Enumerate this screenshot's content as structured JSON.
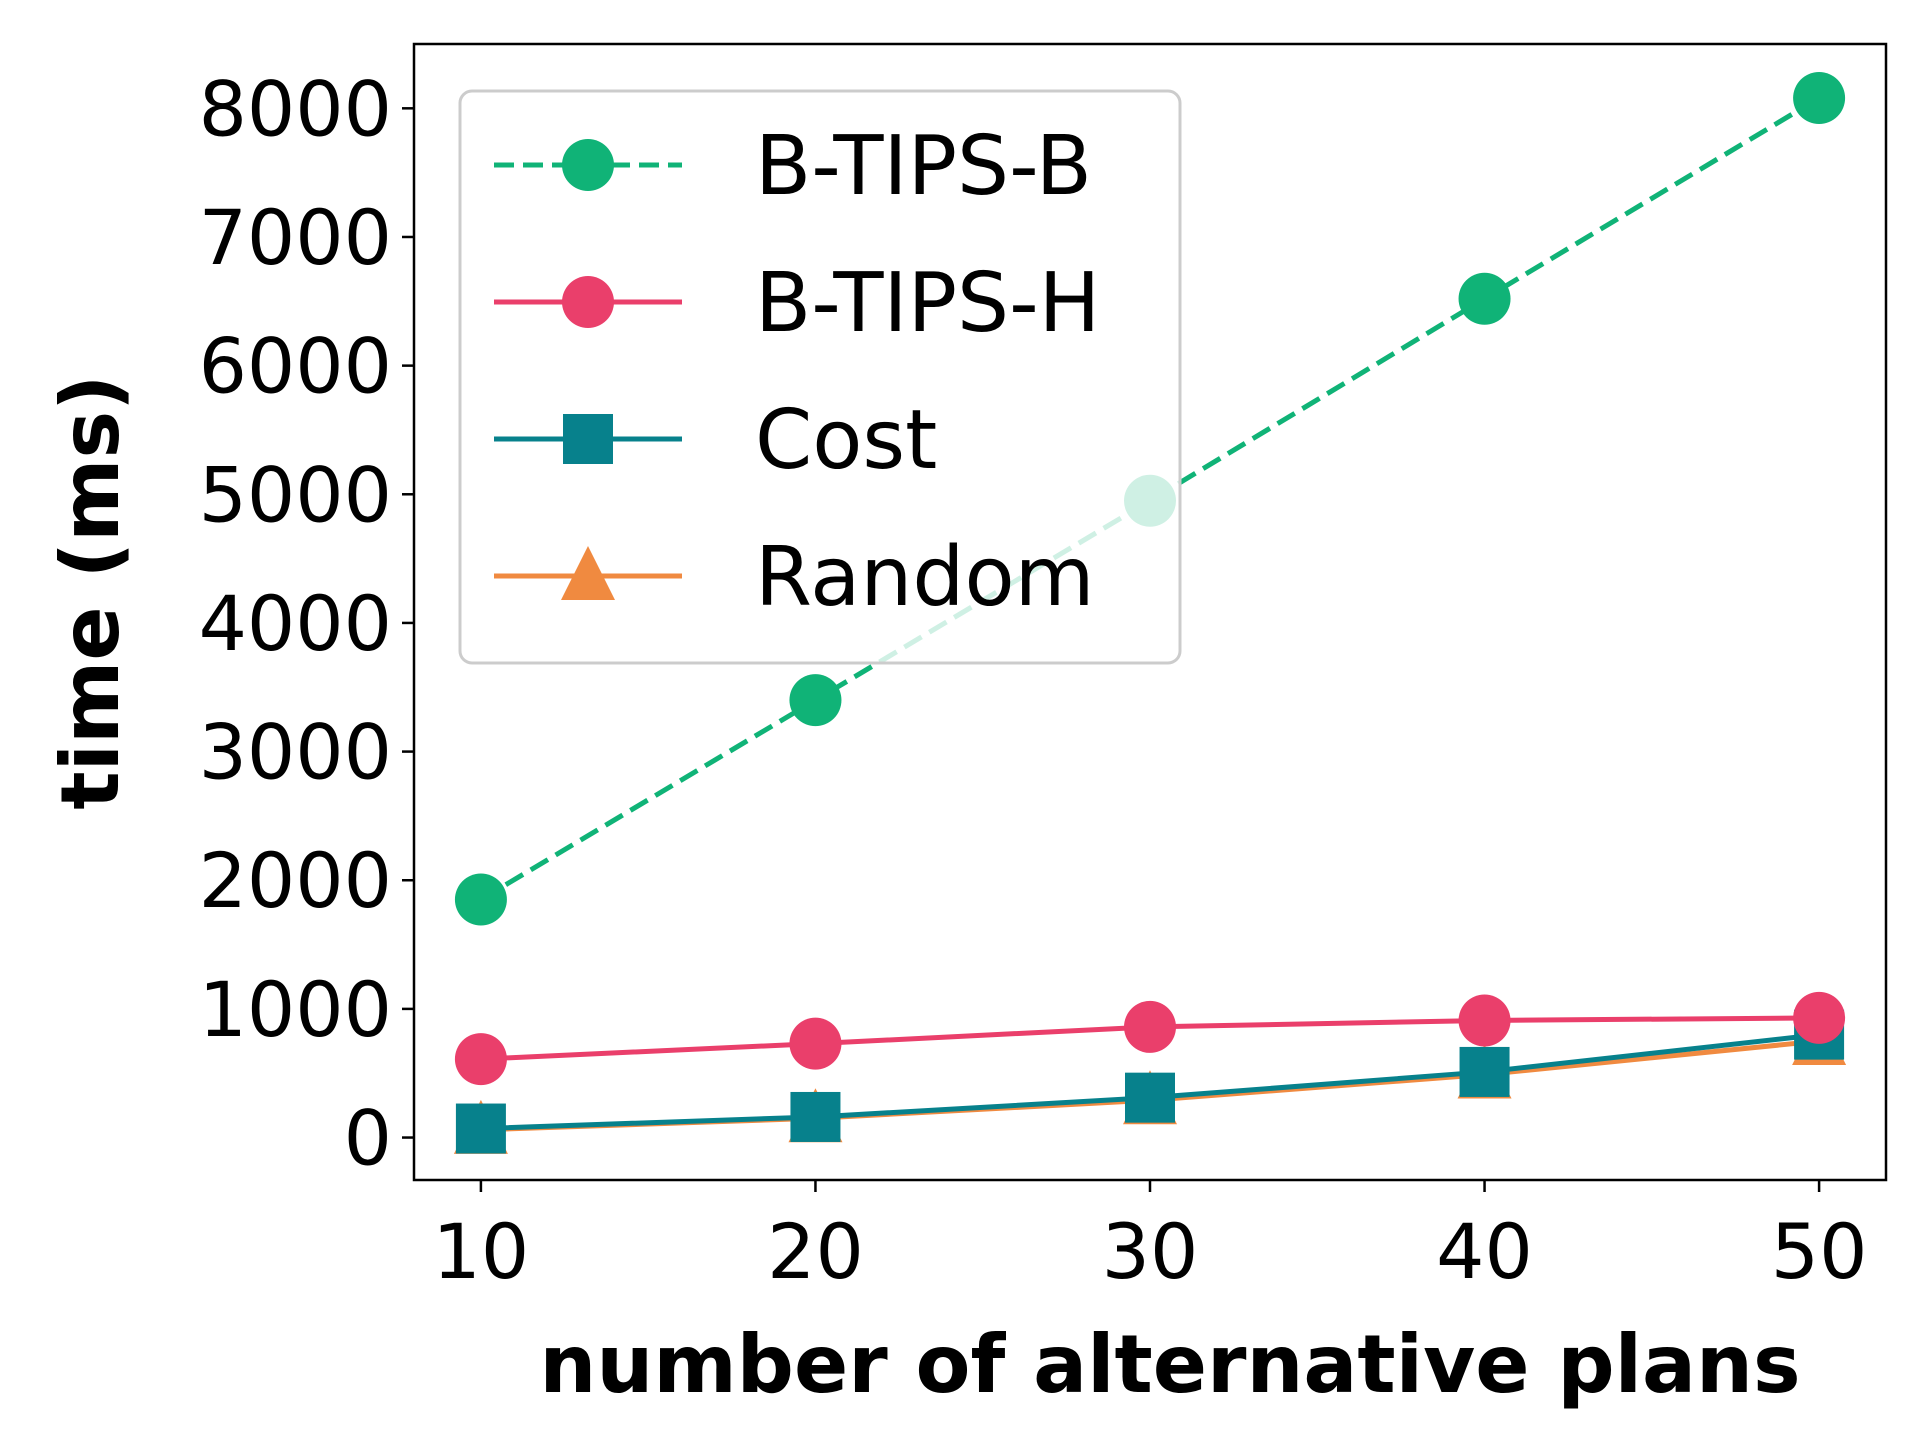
{
  "chart_data": {
    "type": "line",
    "xlabel": "number of alternative plans",
    "ylabel": "time (ms)",
    "x": [
      10,
      20,
      30,
      40,
      50
    ],
    "xticks": [
      "10",
      "20",
      "30",
      "40",
      "50"
    ],
    "xlim": [
      8,
      52
    ],
    "yticks": [
      "0",
      "1000",
      "2000",
      "3000",
      "4000",
      "5000",
      "6000",
      "7000",
      "8000"
    ],
    "ylim": [
      -330,
      8500
    ],
    "grid": false,
    "legend_position": "top-left",
    "series": [
      {
        "name": "B-TIPS-B",
        "values": [
          1850,
          3400,
          4950,
          6520,
          8080
        ],
        "color": "#10b377",
        "marker": "circle",
        "linestyle": "dashed"
      },
      {
        "name": "B-TIPS-H",
        "values": [
          610,
          730,
          860,
          910,
          930
        ],
        "color": "#ea3f6b",
        "marker": "circle",
        "linestyle": "solid"
      },
      {
        "name": "Cost",
        "values": [
          70,
          160,
          310,
          510,
          800
        ],
        "color": "#07818c",
        "marker": "square",
        "linestyle": "solid"
      },
      {
        "name": "Random",
        "values": [
          60,
          150,
          290,
          490,
          750
        ],
        "color": "#f08a40",
        "marker": "triangle",
        "linestyle": "solid"
      }
    ]
  }
}
